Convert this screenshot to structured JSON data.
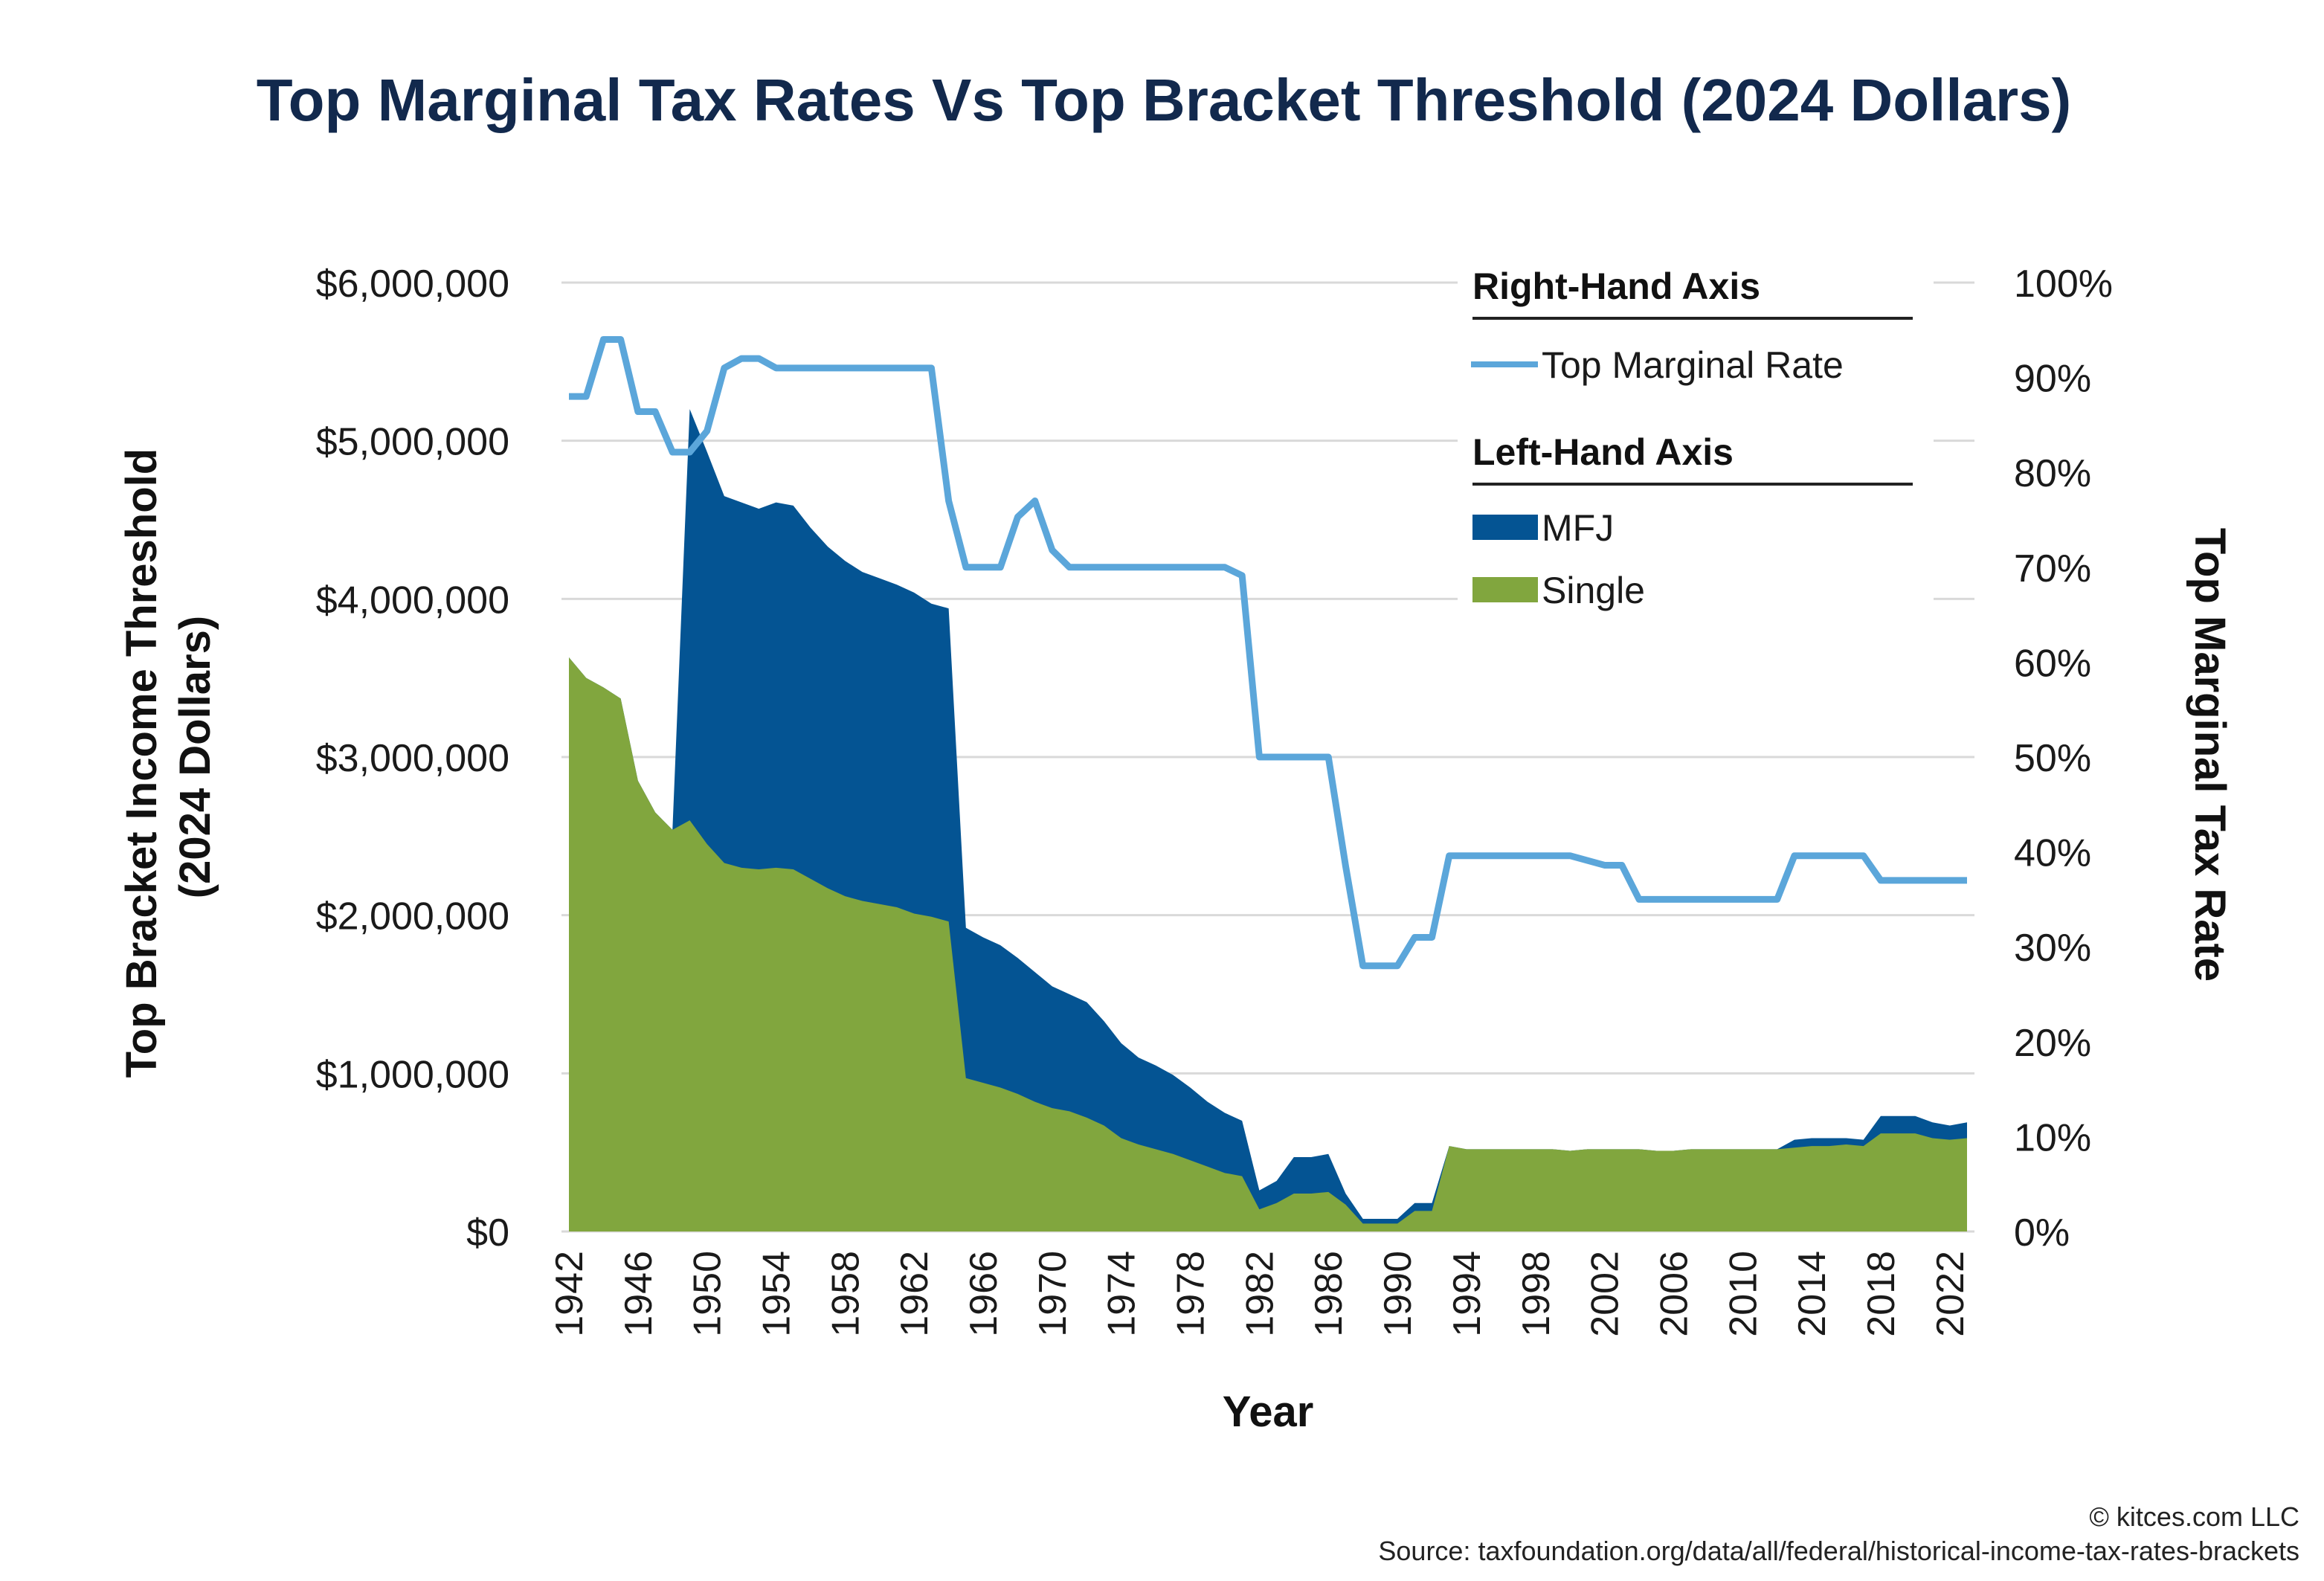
{
  "title": "Top Marginal Tax Rates Vs Top Bracket Threshold (2024 Dollars)",
  "colors": {
    "mfj": "#045493",
    "single": "#81a63e",
    "rate": "#5ba6da",
    "grid": "#d9d9d9",
    "title": "#12294d"
  },
  "legend": {
    "right_header": "Right-Hand Axis",
    "left_header": "Left-Hand Axis",
    "rate_label": "Top Marginal Rate",
    "mfj_label": "MFJ",
    "single_label": "Single"
  },
  "footer": {
    "copyright": "© kitces.com LLC",
    "source": "Source: taxfoundation.org/data/all/federal/historical-income-tax-rates-brackets"
  },
  "chart_data": {
    "type": "area",
    "title": "Top Marginal Tax Rates Vs Top Bracket Threshold (2024 Dollars)",
    "xlabel": "Year",
    "ylabel_left": "Top Bracket Income Threshold (2024 Dollars)",
    "ylabel_right": "Top Marginal Tax Rate",
    "ylim_left": [
      0,
      6000000
    ],
    "ylim_right": [
      0,
      1
    ],
    "xlim": [
      1942,
      2023
    ],
    "grid": true,
    "legend_position": "top-right",
    "x_ticks": [
      1942,
      1946,
      1950,
      1954,
      1958,
      1962,
      1966,
      1970,
      1974,
      1978,
      1982,
      1986,
      1990,
      1994,
      1998,
      2002,
      2006,
      2010,
      2014,
      2018,
      2022
    ],
    "y_left_ticks": [
      "$0",
      "$1,000,000",
      "$2,000,000",
      "$3,000,000",
      "$4,000,000",
      "$5,000,000",
      "$6,000,000"
    ],
    "y_right_ticks": [
      "0%",
      "10%",
      "20%",
      "30%",
      "40%",
      "50%",
      "60%",
      "70%",
      "80%",
      "90%",
      "100%"
    ],
    "x": [
      1942,
      1943,
      1944,
      1945,
      1946,
      1947,
      1948,
      1949,
      1950,
      1951,
      1952,
      1953,
      1954,
      1955,
      1956,
      1957,
      1958,
      1959,
      1960,
      1961,
      1962,
      1963,
      1964,
      1965,
      1966,
      1967,
      1968,
      1969,
      1970,
      1971,
      1972,
      1973,
      1974,
      1975,
      1976,
      1977,
      1978,
      1979,
      1980,
      1981,
      1982,
      1983,
      1984,
      1985,
      1986,
      1987,
      1988,
      1989,
      1990,
      1991,
      1992,
      1993,
      1994,
      1995,
      1996,
      1997,
      1998,
      1999,
      2000,
      2001,
      2002,
      2003,
      2004,
      2005,
      2006,
      2007,
      2008,
      2009,
      2010,
      2011,
      2012,
      2013,
      2014,
      2015,
      2016,
      2017,
      2018,
      2019,
      2020,
      2021,
      2022,
      2023
    ],
    "series": [
      {
        "name": "MFJ",
        "axis": "left",
        "values": [
          3630000,
          3500000,
          3440000,
          3370000,
          2850000,
          2650000,
          2540000,
          5200000,
          4930000,
          4650000,
          4610000,
          4570000,
          4610000,
          4590000,
          4450000,
          4330000,
          4240000,
          4170000,
          4130000,
          4090000,
          4040000,
          3970000,
          3940000,
          1920000,
          1860000,
          1810000,
          1730000,
          1640000,
          1550000,
          1500000,
          1450000,
          1330000,
          1190000,
          1100000,
          1050000,
          990000,
          910000,
          820000,
          750000,
          700000,
          260000,
          320000,
          470000,
          470000,
          490000,
          240000,
          80000,
          80000,
          80000,
          180000,
          180000,
          540000,
          520000,
          520000,
          520000,
          520000,
          520000,
          520000,
          510000,
          520000,
          520000,
          520000,
          520000,
          510000,
          510000,
          520000,
          520000,
          520000,
          520000,
          520000,
          520000,
          580000,
          590000,
          590000,
          590000,
          580000,
          730000,
          730000,
          730000,
          690000,
          670000,
          690000
        ]
      },
      {
        "name": "Single",
        "axis": "left",
        "values": [
          3630000,
          3500000,
          3440000,
          3370000,
          2850000,
          2650000,
          2540000,
          2600000,
          2450000,
          2330000,
          2300000,
          2290000,
          2300000,
          2290000,
          2230000,
          2170000,
          2120000,
          2090000,
          2070000,
          2050000,
          2010000,
          1990000,
          1960000,
          970000,
          940000,
          910000,
          870000,
          820000,
          780000,
          760000,
          720000,
          670000,
          590000,
          550000,
          520000,
          490000,
          450000,
          410000,
          370000,
          350000,
          140000,
          180000,
          240000,
          240000,
          250000,
          170000,
          50000,
          50000,
          50000,
          130000,
          130000,
          540000,
          520000,
          520000,
          520000,
          520000,
          520000,
          520000,
          510000,
          520000,
          520000,
          520000,
          520000,
          510000,
          510000,
          520000,
          520000,
          520000,
          520000,
          520000,
          520000,
          530000,
          540000,
          540000,
          550000,
          540000,
          620000,
          620000,
          620000,
          590000,
          580000,
          590000
        ]
      },
      {
        "name": "Top Marginal Rate",
        "axis": "right",
        "values": [
          0.88,
          0.88,
          0.94,
          0.94,
          0.864,
          0.864,
          0.8213,
          0.8213,
          0.8436,
          0.91,
          0.92,
          0.92,
          0.91,
          0.91,
          0.91,
          0.91,
          0.91,
          0.91,
          0.91,
          0.91,
          0.91,
          0.91,
          0.77,
          0.7,
          0.7,
          0.7,
          0.753,
          0.77,
          0.718,
          0.7,
          0.7,
          0.7,
          0.7,
          0.7,
          0.7,
          0.7,
          0.7,
          0.7,
          0.7,
          0.6913,
          0.5,
          0.5,
          0.5,
          0.5,
          0.5,
          0.385,
          0.28,
          0.28,
          0.28,
          0.31,
          0.31,
          0.396,
          0.396,
          0.396,
          0.396,
          0.396,
          0.396,
          0.396,
          0.396,
          0.391,
          0.386,
          0.386,
          0.35,
          0.35,
          0.35,
          0.35,
          0.35,
          0.35,
          0.35,
          0.35,
          0.35,
          0.396,
          0.396,
          0.396,
          0.396,
          0.396,
          0.37,
          0.37,
          0.37,
          0.37,
          0.37,
          0.37
        ]
      }
    ]
  }
}
